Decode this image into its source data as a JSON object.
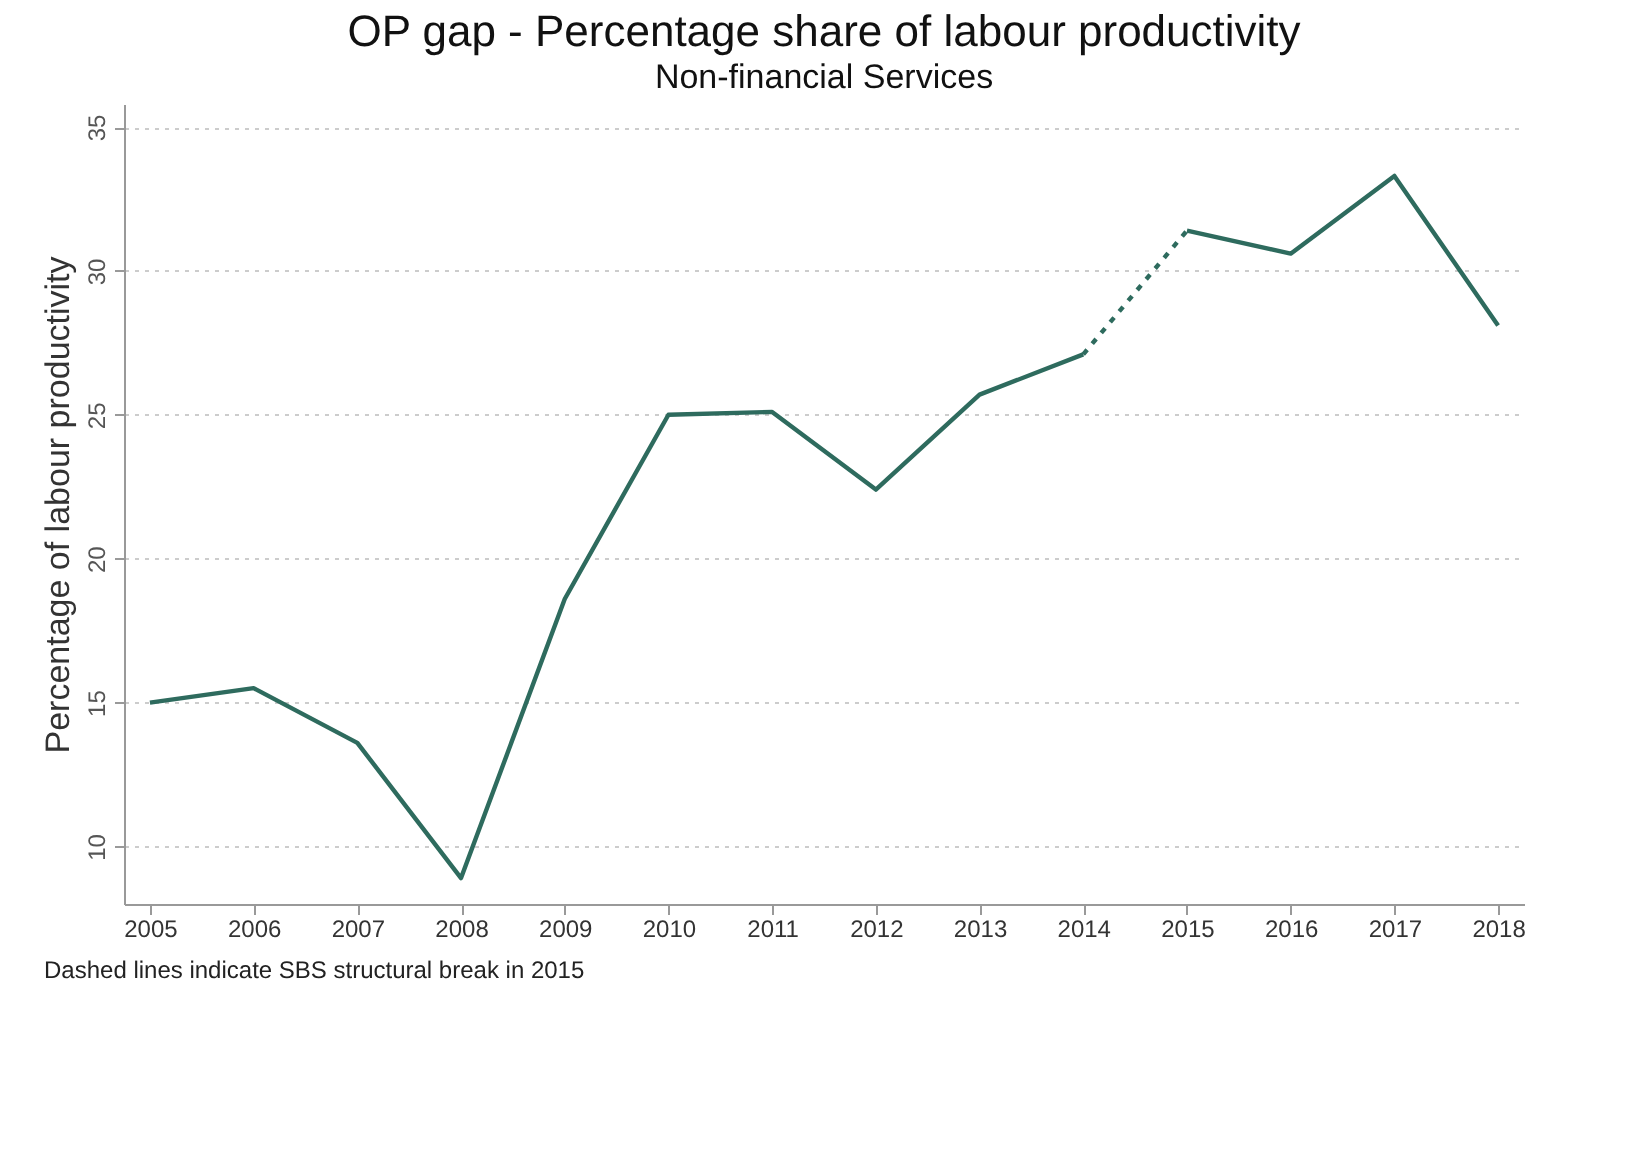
{
  "chart_data": {
    "type": "line",
    "title": "OP gap - Percentage share of labour productivity",
    "subtitle": "Non-financial Services",
    "ylabel": "Percentage of labour productivity",
    "xlim": [
      2004.75,
      2018.25
    ],
    "xticks": [
      2005,
      2006,
      2007,
      2008,
      2009,
      2010,
      2011,
      2012,
      2013,
      2014,
      2015,
      2016,
      2017,
      2018
    ],
    "ylim": [
      8,
      35.8
    ],
    "yticks": [
      10,
      15,
      20,
      25,
      30,
      35
    ],
    "grid": "y",
    "annotations": [
      "Dashed lines indicate SBS structural break in 2015"
    ],
    "series": [
      {
        "color": "#2e6b5e",
        "line_style": "solid",
        "x": [
          2005,
          2006,
          2007,
          2008,
          2009,
          2010,
          2011,
          2012,
          2013,
          2014
        ],
        "values": [
          15.0,
          15.5,
          13.6,
          8.9,
          18.6,
          25.0,
          25.1,
          22.4,
          25.7,
          27.1
        ]
      },
      {
        "color": "#2e6b5e",
        "line_style": "dotted",
        "x": [
          2014,
          2015
        ],
        "values": [
          27.1,
          31.4
        ]
      },
      {
        "color": "#2e6b5e",
        "line_style": "solid",
        "x": [
          2015,
          2016,
          2017,
          2018
        ],
        "values": [
          31.4,
          30.6,
          33.3,
          28.1
        ]
      }
    ]
  }
}
